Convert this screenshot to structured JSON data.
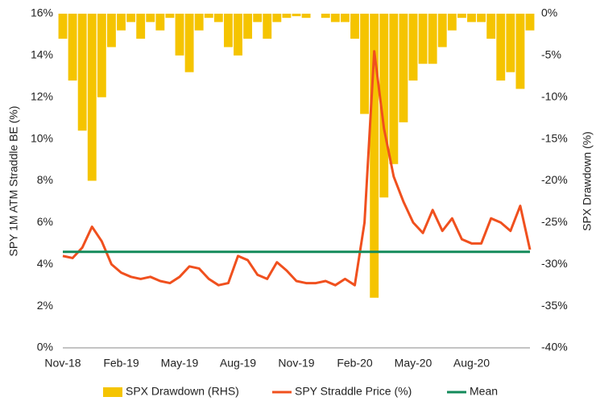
{
  "chart_data": {
    "type": "line",
    "categories": [
      "Nov-18",
      null,
      null,
      null,
      null,
      null,
      "Feb-19",
      null,
      null,
      null,
      null,
      null,
      "May-19",
      null,
      null,
      null,
      null,
      null,
      "Aug-19",
      null,
      null,
      null,
      null,
      null,
      "Nov-19",
      null,
      null,
      null,
      null,
      null,
      "Feb-20",
      null,
      null,
      null,
      null,
      null,
      "May-20",
      null,
      null,
      null,
      null,
      null,
      "Aug-20",
      null,
      null,
      null,
      null,
      null,
      null
    ],
    "ylabel": "SPY 1M ATM Straddle BE (%)",
    "y2label": "SPX Drawdown (%)",
    "ylim": [
      0,
      16
    ],
    "yticks": [
      {
        "value": 0,
        "label": "0%"
      },
      {
        "value": 2,
        "label": "2%"
      },
      {
        "value": 4,
        "label": "4%"
      },
      {
        "value": 6,
        "label": "6%"
      },
      {
        "value": 8,
        "label": "8%"
      },
      {
        "value": 10,
        "label": "10%"
      },
      {
        "value": 12,
        "label": "12%"
      },
      {
        "value": 14,
        "label": "14%"
      },
      {
        "value": 16,
        "label": "16%"
      }
    ],
    "y2lim": [
      0,
      -40
    ],
    "y2ticks": [
      {
        "value": 0,
        "label": "0%"
      },
      {
        "value": -5,
        "label": "-5%"
      },
      {
        "value": -10,
        "label": "-10%"
      },
      {
        "value": -15,
        "label": "-15%"
      },
      {
        "value": -20,
        "label": "-20%"
      },
      {
        "value": -25,
        "label": "-25%"
      },
      {
        "value": -30,
        "label": "-30%"
      },
      {
        "value": -35,
        "label": "-35%"
      },
      {
        "value": -40,
        "label": "-40%"
      }
    ],
    "series": [
      {
        "name": "SPX Drawdown (RHS)",
        "type": "bar",
        "axis": "y2",
        "color": "#f5c400",
        "values": [
          -3,
          -8,
          -14,
          -20,
          -10,
          -4,
          -2,
          -1,
          -3,
          -1,
          -2,
          -0.5,
          -5,
          -7,
          -2,
          -0.5,
          -1,
          -4,
          -5,
          -3,
          -1,
          -3,
          -1,
          -0.5,
          -0.3,
          -0.5,
          0,
          -0.5,
          -1,
          -1,
          -3,
          -12,
          -34,
          -22,
          -18,
          -13,
          -8,
          -6,
          -6,
          -4,
          -2,
          -0.5,
          -1,
          -1,
          -3,
          -8,
          -7,
          -9,
          -2
        ]
      },
      {
        "name": "SPY Straddle Price (%)",
        "type": "line",
        "color": "#f0501e",
        "values": [
          4.4,
          4.3,
          4.8,
          5.8,
          5.1,
          4.0,
          3.6,
          3.4,
          3.3,
          3.4,
          3.2,
          3.1,
          3.4,
          3.9,
          3.8,
          3.3,
          3.0,
          3.1,
          4.4,
          4.2,
          3.5,
          3.3,
          4.1,
          3.7,
          3.2,
          3.1,
          3.1,
          3.2,
          3.0,
          3.3,
          3.0,
          6.0,
          14.2,
          10.5,
          8.2,
          7.0,
          6.0,
          5.5,
          6.6,
          5.6,
          6.2,
          5.2,
          5.0,
          5.0,
          6.2,
          6.0,
          5.6,
          6.8,
          4.7
        ]
      },
      {
        "name": "Mean",
        "type": "hline",
        "color": "#138a5a",
        "value": 4.6
      }
    ]
  }
}
